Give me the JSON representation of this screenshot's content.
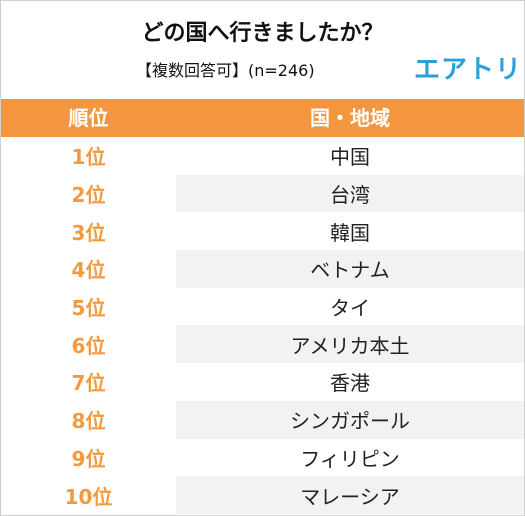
{
  "header": {
    "title": "どの国へ行きましたか？",
    "subtitle": "【複数回答可】(n=246)",
    "logo": "エアトリ"
  },
  "table": {
    "col_rank": "順位",
    "col_country": "国・地域",
    "rows": [
      {
        "rank": "1位",
        "country": "中国"
      },
      {
        "rank": "2位",
        "country": "台湾"
      },
      {
        "rank": "3位",
        "country": "韓国"
      },
      {
        "rank": "4位",
        "country": "ベトナム"
      },
      {
        "rank": "5位",
        "country": "タイ"
      },
      {
        "rank": "6位",
        "country": "アメリカ本土"
      },
      {
        "rank": "7位",
        "country": "香港"
      },
      {
        "rank": "8位",
        "country": "シンガポール"
      },
      {
        "rank": "9位",
        "country": "フィリピン"
      },
      {
        "rank": "10位",
        "country": "マレーシア"
      }
    ]
  },
  "colors": {
    "header_bg": "#f3963f",
    "rank_text": "#f39a3e",
    "row_shade": "#f2f2f2",
    "logo": "#2e9fd6"
  }
}
